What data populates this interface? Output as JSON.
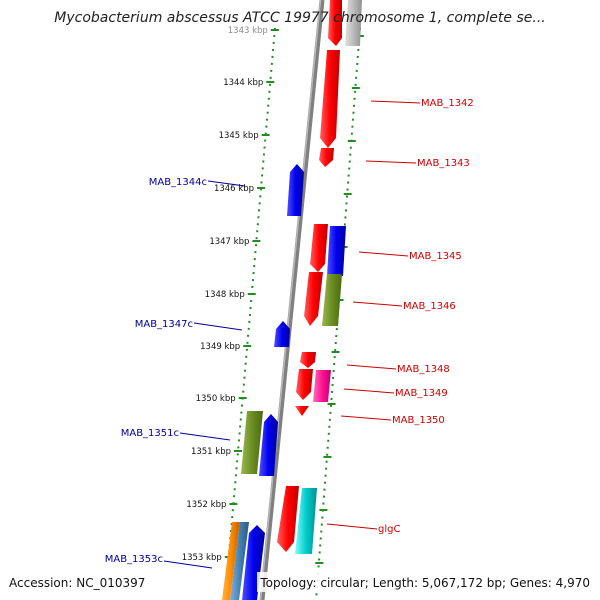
{
  "title": "Mycobacterium abscessus ATCC 19977 chromosome 1, complete se...",
  "footer": {
    "accession": "Accession: NC_010397",
    "summary": "Topology: circular; Length: 5,067,172 bp; Genes: 4,970"
  },
  "colors": {
    "forward": "#ff0000",
    "reverse": "#0000ee",
    "olive": "#6b8e23",
    "magenta": "#ff1493",
    "cyan": "#00cccc",
    "orange": "#ff8c00",
    "steel": "#4682b4",
    "grey": "#bbbbbb",
    "backbone": "#808080",
    "ruler": "#228b22",
    "forward_label": "#cc0000",
    "reverse_label": "#000099"
  },
  "scale": {
    "ticks": [
      {
        "label": "1343 kbp"
      },
      {
        "label": "1344 kbp"
      },
      {
        "label": "1345 kbp"
      },
      {
        "label": "1346 kbp"
      },
      {
        "label": "1347 kbp"
      },
      {
        "label": "1348 kbp"
      },
      {
        "label": "1349 kbp"
      },
      {
        "label": "1350 kbp"
      },
      {
        "label": "1351 kbp"
      },
      {
        "label": "1352 kbp"
      },
      {
        "label": "1353 kbp"
      }
    ]
  },
  "gene_labels": {
    "forward": [
      "MAB_1342",
      "MAB_1343",
      "MAB_1345",
      "MAB_1346",
      "MAB_1348",
      "MAB_1349",
      "MAB_1350",
      "glgC"
    ],
    "reverse": [
      "MAB_1344c",
      "MAB_1347c",
      "MAB_1351c",
      "MAB_1353c"
    ]
  },
  "icons": {
    "forward_gene": "right-arrow-block",
    "reverse_gene": "left-arrow-block"
  }
}
